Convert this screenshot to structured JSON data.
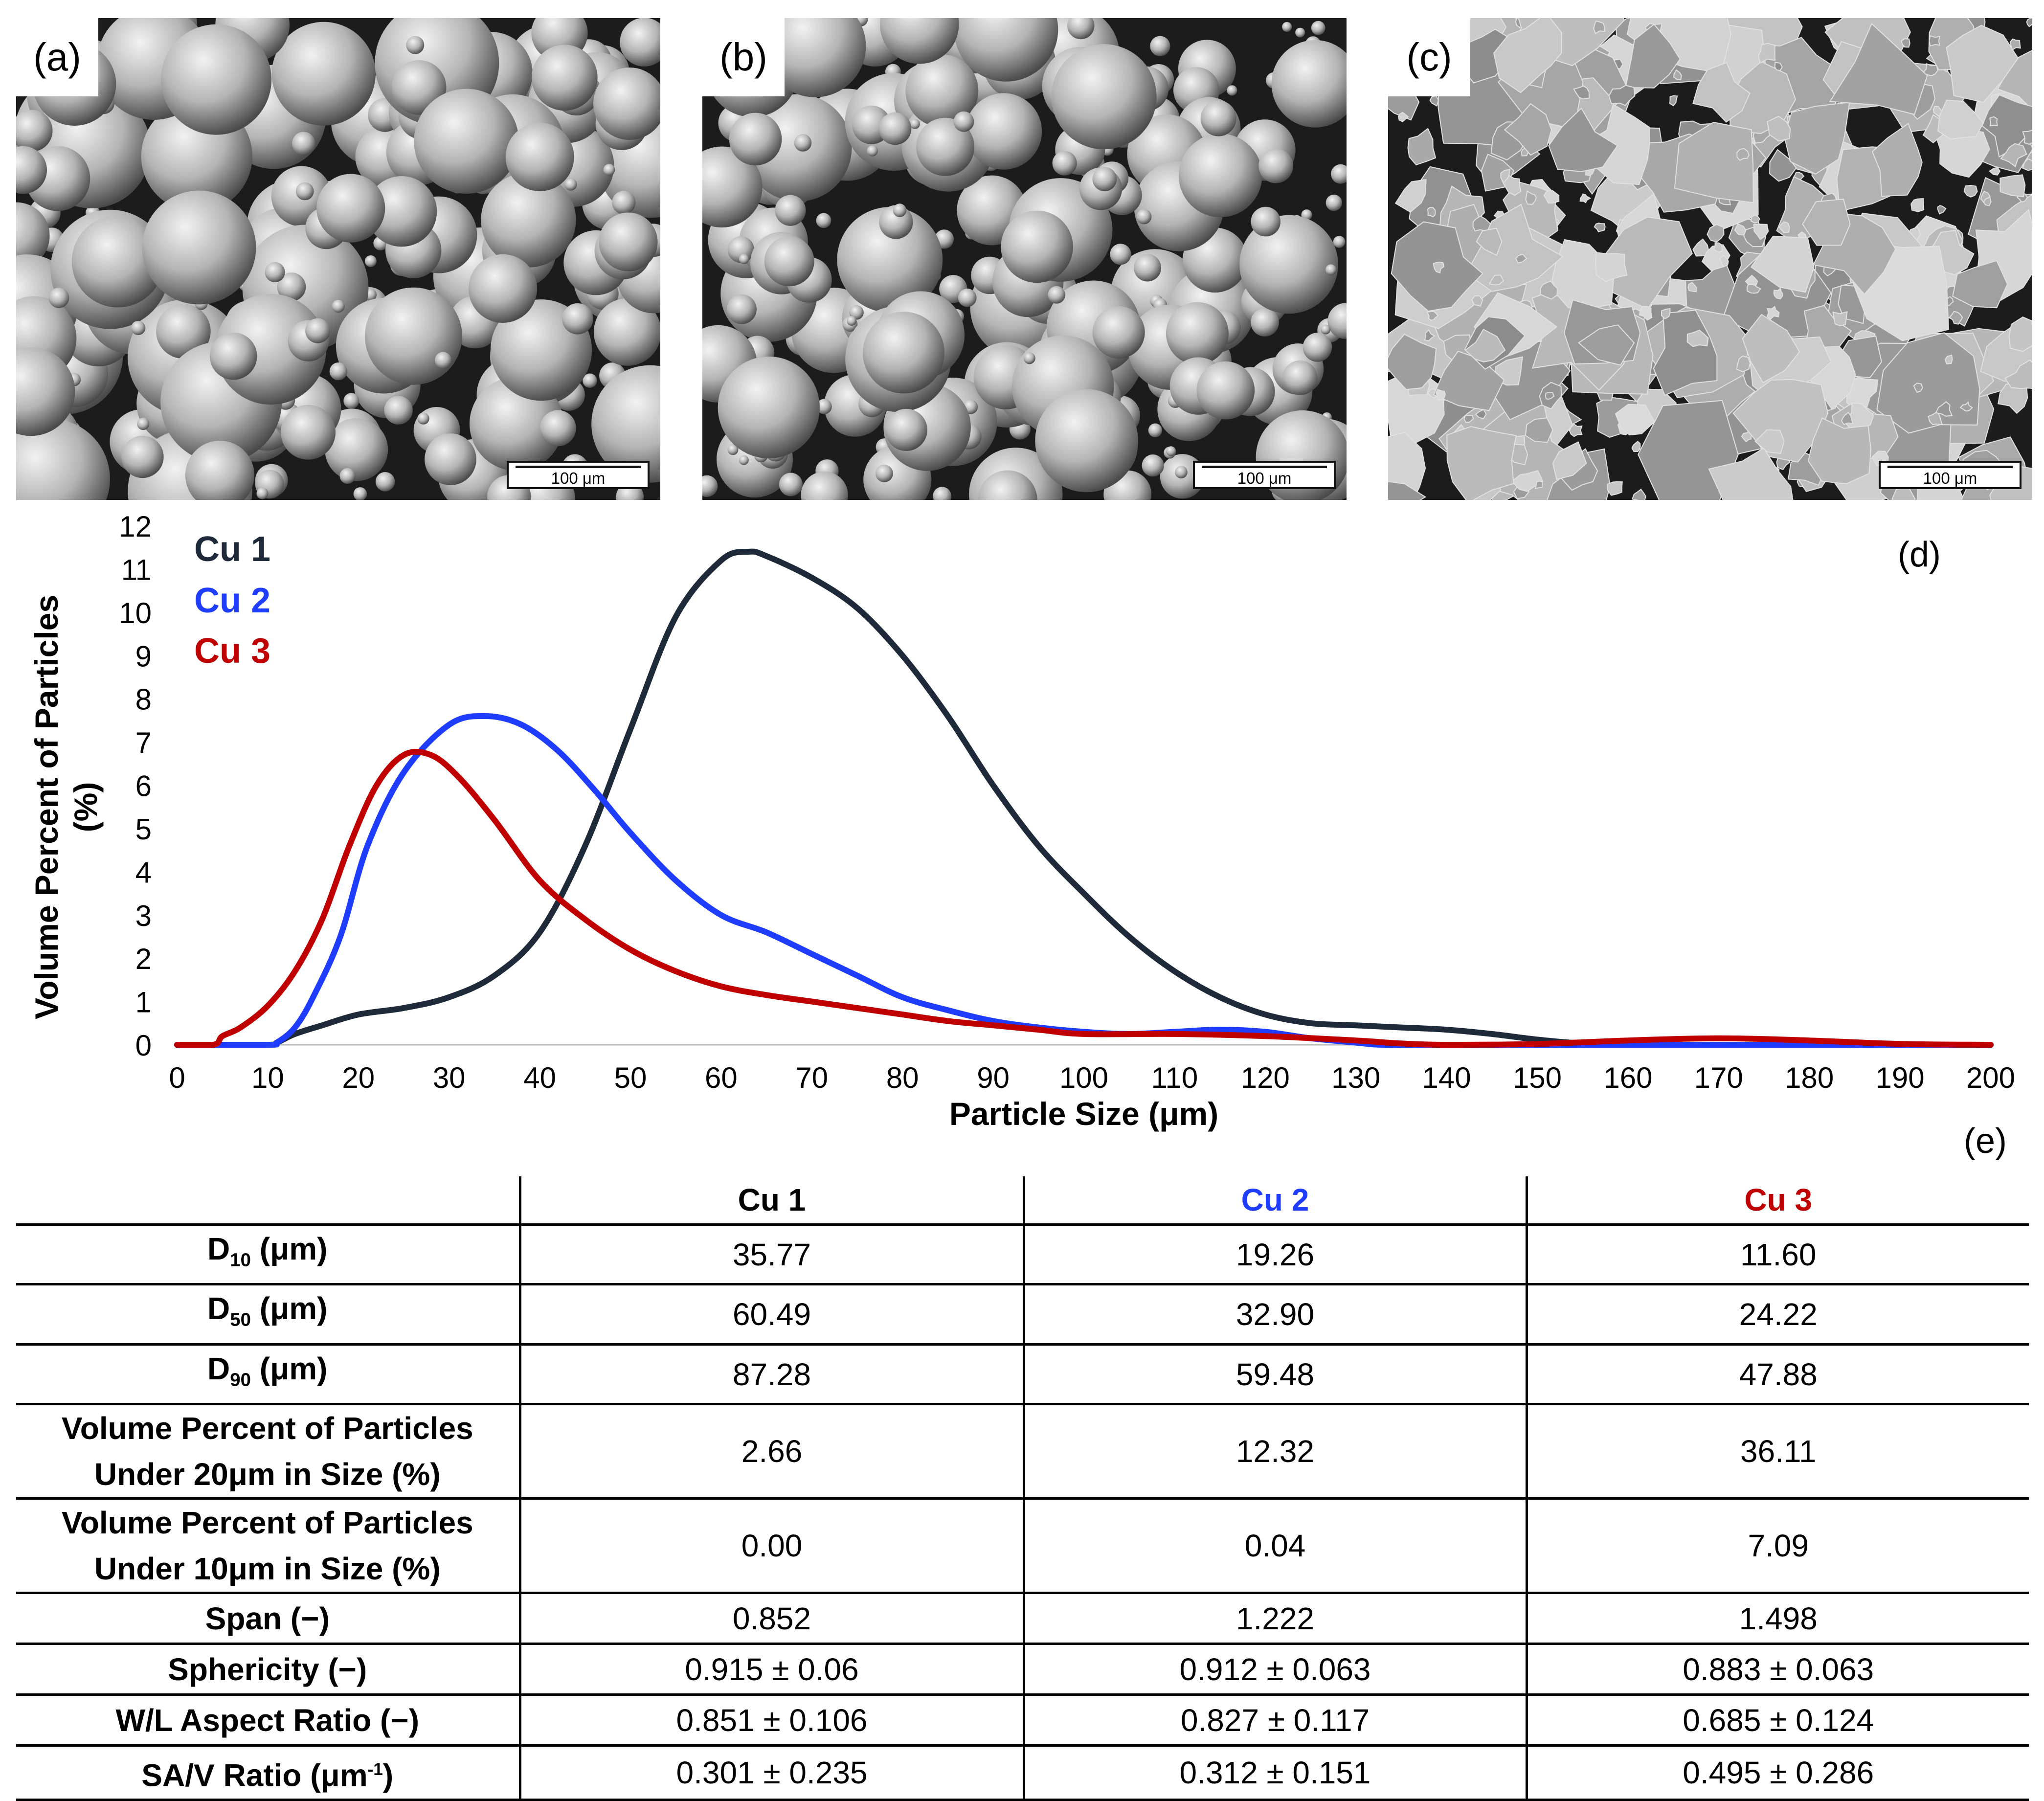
{
  "panels": {
    "a": {
      "label": "(a)",
      "scale_bar": "100 μm"
    },
    "b": {
      "label": "(b)",
      "scale_bar": "100 μm"
    },
    "c": {
      "label": "(c)",
      "scale_bar": "100 μm"
    },
    "d": {
      "label": "(d)"
    },
    "e": {
      "label": "(e)"
    }
  },
  "chart_data": {
    "type": "line",
    "title": "",
    "xlabel": "Particle Size (μm)",
    "ylabel_line1": "Volume Percent of Particles",
    "ylabel_line2": "(%)",
    "xlim": [
      0,
      200
    ],
    "ylim": [
      0,
      12
    ],
    "xticks": [
      "0",
      "10",
      "20",
      "30",
      "40",
      "50",
      "60",
      "70",
      "80",
      "90",
      "100",
      "110",
      "120",
      "130",
      "140",
      "150",
      "160",
      "170",
      "180",
      "190",
      "200"
    ],
    "yticks": [
      "0",
      "1",
      "2",
      "3",
      "4",
      "5",
      "6",
      "7",
      "8",
      "9",
      "10",
      "11",
      "12"
    ],
    "grid": false,
    "legend_position": "top-left",
    "series": [
      {
        "name": "Cu 1",
        "color": "#1e2a3a",
        "x": [
          0,
          10,
          11,
          13,
          16,
          20,
          25,
          30,
          35,
          40,
          45,
          50,
          55,
          60,
          63,
          65,
          70,
          75,
          80,
          85,
          90,
          95,
          100,
          105,
          110,
          115,
          120,
          125,
          130,
          135,
          140,
          145,
          150,
          155,
          160,
          170,
          180,
          190,
          200
        ],
        "y": [
          0,
          0,
          0.05,
          0.25,
          0.45,
          0.7,
          0.85,
          1.1,
          1.6,
          2.6,
          4.6,
          7.3,
          9.9,
          11.2,
          11.4,
          11.3,
          10.8,
          10.1,
          9.0,
          7.6,
          6.0,
          4.6,
          3.5,
          2.5,
          1.7,
          1.1,
          0.7,
          0.5,
          0.45,
          0.4,
          0.35,
          0.25,
          0.12,
          0.03,
          0,
          0,
          0,
          0,
          0
        ]
      },
      {
        "name": "Cu 2",
        "color": "#1f3dff",
        "x": [
          0,
          10,
          11,
          13,
          15,
          18,
          21,
          25,
          30,
          34,
          38,
          42,
          46,
          50,
          55,
          60,
          65,
          70,
          75,
          80,
          85,
          90,
          95,
          100,
          105,
          110,
          115,
          120,
          125,
          130,
          133,
          140,
          160,
          200
        ],
        "y": [
          0,
          0,
          0.05,
          0.4,
          1.1,
          2.5,
          4.6,
          6.3,
          7.4,
          7.6,
          7.4,
          6.8,
          5.9,
          4.9,
          3.8,
          3.0,
          2.6,
          2.1,
          1.6,
          1.1,
          0.8,
          0.55,
          0.4,
          0.3,
          0.25,
          0.3,
          0.35,
          0.3,
          0.15,
          0.05,
          0,
          0,
          0,
          0
        ]
      },
      {
        "name": "Cu 3",
        "color": "#c00000",
        "x": [
          0,
          4,
          5,
          7,
          10,
          13,
          16,
          19,
          22,
          25,
          28,
          31,
          35,
          40,
          45,
          50,
          55,
          60,
          65,
          70,
          75,
          80,
          85,
          90,
          95,
          100,
          110,
          120,
          130,
          135,
          140,
          150,
          160,
          170,
          180,
          190,
          200
        ],
        "y": [
          0,
          0,
          0.2,
          0.4,
          0.9,
          1.7,
          2.9,
          4.6,
          6.0,
          6.7,
          6.7,
          6.2,
          5.2,
          3.8,
          2.9,
          2.2,
          1.7,
          1.35,
          1.15,
          1.0,
          0.85,
          0.7,
          0.55,
          0.45,
          0.35,
          0.25,
          0.25,
          0.2,
          0.1,
          0.03,
          0,
          0.02,
          0.1,
          0.15,
          0.1,
          0.02,
          0
        ]
      }
    ]
  },
  "table": {
    "headers": [
      "",
      "Cu 1",
      "Cu 2",
      "Cu 3"
    ],
    "header_colors": [
      "#000000",
      "#000000",
      "#1f3dff",
      "#c00000"
    ],
    "rows": [
      {
        "label": "D",
        "sub": "10",
        "unit": " (μm)",
        "values": [
          "35.77",
          "19.26",
          "11.60"
        ]
      },
      {
        "label": "D",
        "sub": "50",
        "unit": " (μm)",
        "values": [
          "60.49",
          "32.90",
          "24.22"
        ]
      },
      {
        "label": "D",
        "sub": "90",
        "unit": " (μm)",
        "values": [
          "87.28",
          "59.48",
          "47.88"
        ]
      },
      {
        "label_line1": "Volume Percent of Particles",
        "label_line2": "Under 20μm in Size (%)",
        "values": [
          "2.66",
          "12.32",
          "36.11"
        ]
      },
      {
        "label_line1": "Volume Percent of Particles",
        "label_line2": "Under 10μm in Size (%)",
        "values": [
          "0.00",
          "0.04",
          "7.09"
        ]
      },
      {
        "label": "Span (−)",
        "values": [
          "0.852",
          "1.222",
          "1.498"
        ]
      },
      {
        "label": "Sphericity (−)",
        "values": [
          "0.915 ± 0.06",
          "0.912 ± 0.063",
          "0.883 ± 0.063"
        ]
      },
      {
        "label": "W/L Aspect Ratio (−)",
        "values": [
          "0.851 ± 0.106",
          "0.827 ± 0.117",
          "0.685 ± 0.124"
        ]
      },
      {
        "label": "SA/V Ratio (μm",
        "sup": "-1",
        "unit": ")",
        "values": [
          "0.301 ± 0.235",
          "0.312 ± 0.151",
          "0.495 ± 0.286"
        ]
      }
    ]
  }
}
